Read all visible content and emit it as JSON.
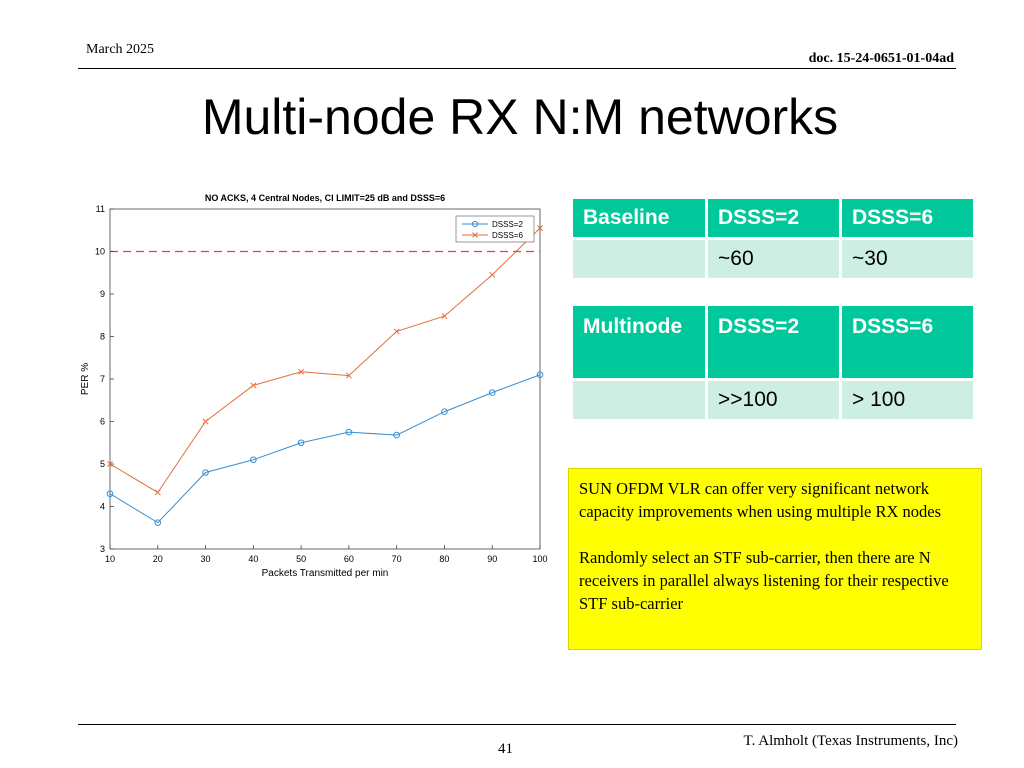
{
  "header": {
    "date": "March 2025",
    "doc_id": "doc. 15-24-0651-01-04ad"
  },
  "title": "Multi-node RX N:M networks",
  "table_baseline": {
    "header": [
      "Baseline",
      "DSSS=2",
      "DSSS=6"
    ],
    "row": [
      "",
      "~60",
      "~30"
    ]
  },
  "table_multinode": {
    "header": [
      "Multinode",
      "DSSS=2",
      "DSSS=6"
    ],
    "row": [
      "",
      ">>100",
      "> 100"
    ]
  },
  "note": {
    "para1": "SUN OFDM VLR can offer very significant network capacity improvements when using multiple RX nodes",
    "para2": "Randomly select an STF sub-carrier, then there are N receivers in parallel always listening for their respective STF sub-carrier"
  },
  "footer": {
    "page_number": "41",
    "author": "T. Almholt (Texas Instruments, Inc)"
  },
  "chart_data": {
    "type": "line",
    "title": "NO ACKS, 4 Central Nodes, CI LIMIT=25 dB and DSSS=6",
    "xlabel": "Packets Transmitted per min",
    "ylabel": "PER %",
    "x": [
      10,
      20,
      30,
      40,
      50,
      60,
      70,
      80,
      90,
      100
    ],
    "xlim": [
      10,
      100
    ],
    "ylim": [
      3,
      11
    ],
    "xticks": [
      "10",
      "20",
      "30",
      "40",
      "50",
      "60",
      "70",
      "80",
      "90",
      "100"
    ],
    "yticks": [
      "3",
      "4",
      "5",
      "6",
      "7",
      "8",
      "9",
      "10",
      "11"
    ],
    "grid": false,
    "legend_position": "top-right",
    "series": [
      {
        "name": "DSSS=2",
        "color": "#3a8fd0",
        "marker": "circle",
        "values": [
          4.3,
          3.62,
          4.8,
          5.1,
          5.5,
          5.75,
          5.68,
          6.23,
          6.68,
          7.1
        ]
      },
      {
        "name": "DSSS=6",
        "color": "#e06f3c",
        "marker": "x",
        "values": [
          5.0,
          4.33,
          6.0,
          6.85,
          7.17,
          7.08,
          8.12,
          8.48,
          9.45,
          10.55
        ]
      }
    ],
    "reference_line": {
      "y": 10,
      "color": "#e8413a",
      "style": "dashed"
    }
  }
}
